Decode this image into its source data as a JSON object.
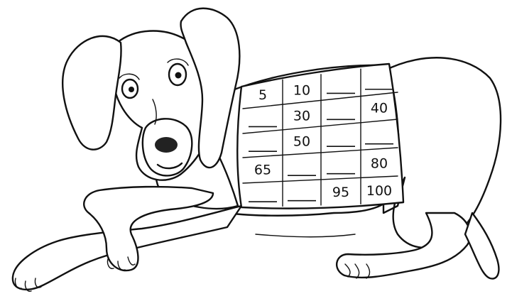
{
  "worksheet": {
    "grid": [
      [
        "5",
        "10",
        "",
        ""
      ],
      [
        "",
        "30",
        "",
        "40"
      ],
      [
        "",
        "50",
        "",
        ""
      ],
      [
        "65",
        "",
        "",
        "80"
      ],
      [
        "",
        "",
        "95",
        "100"
      ]
    ]
  }
}
